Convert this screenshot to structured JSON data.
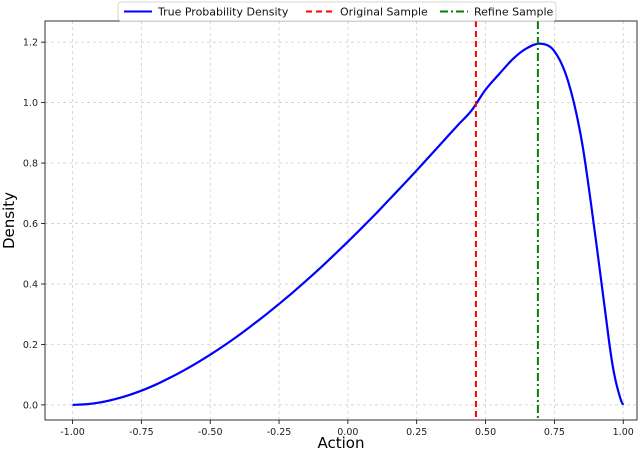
{
  "chart_data": {
    "type": "line",
    "xlabel": "Action",
    "ylabel": "Density",
    "xlim": [
      -1.1,
      1.05
    ],
    "ylim": [
      -0.05,
      1.27
    ],
    "x_ticks": [
      "-1.00",
      "-0.75",
      "-0.50",
      "-0.25",
      "0.00",
      "0.25",
      "0.50",
      "0.75",
      "1.00"
    ],
    "x_tick_values": [
      -1.0,
      -0.75,
      -0.5,
      -0.25,
      0.0,
      0.25,
      0.5,
      0.75,
      1.0
    ],
    "y_ticks": [
      "0.0",
      "0.2",
      "0.4",
      "0.6",
      "0.8",
      "1.0",
      "1.2"
    ],
    "y_tick_values": [
      0.0,
      0.2,
      0.4,
      0.6,
      0.8,
      1.0,
      1.2
    ],
    "grid": true,
    "legend_position": "top",
    "series": [
      {
        "name": "True Probability Density",
        "color": "#0000ff",
        "style": "solid",
        "x": [
          -1.0,
          -0.95,
          -0.9,
          -0.85,
          -0.8,
          -0.75,
          -0.7,
          -0.65,
          -0.6,
          -0.55,
          -0.5,
          -0.45,
          -0.4,
          -0.35,
          -0.3,
          -0.25,
          -0.2,
          -0.15,
          -0.1,
          -0.05,
          0.0,
          0.05,
          0.1,
          0.15,
          0.2,
          0.25,
          0.3,
          0.35,
          0.4,
          0.45,
          0.5,
          0.55,
          0.6,
          0.65,
          0.7,
          0.75,
          0.8,
          0.85,
          0.9,
          0.95,
          0.97,
          0.99,
          1.0
        ],
        "y": [
          0.0,
          0.002,
          0.008,
          0.018,
          0.031,
          0.047,
          0.066,
          0.088,
          0.112,
          0.138,
          0.166,
          0.196,
          0.228,
          0.262,
          0.297,
          0.334,
          0.372,
          0.412,
          0.453,
          0.496,
          0.54,
          0.585,
          0.631,
          0.679,
          0.727,
          0.776,
          0.826,
          0.876,
          0.926,
          0.975,
          1.043,
          1.095,
          1.145,
          1.18,
          1.195,
          1.17,
          1.07,
          0.87,
          0.55,
          0.2,
          0.09,
          0.02,
          0.0
        ]
      },
      {
        "name": "Original Sample",
        "color": "#ff0000",
        "style": "dashed",
        "x_value": 0.465
      },
      {
        "name": "Refine Sample",
        "color": "#008000",
        "style": "dashdot",
        "x_value": 0.69
      }
    ]
  }
}
